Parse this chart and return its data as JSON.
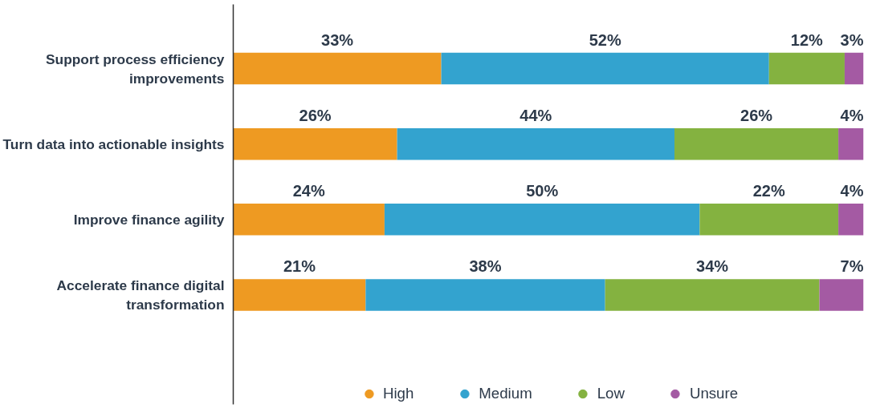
{
  "chart_data": {
    "type": "bar",
    "orientation": "horizontal",
    "stacked": true,
    "categories": [
      "Support process efficiency improvements",
      "Turn data into actionable insights",
      "Improve finance agility",
      "Accelerate finance digital transformation"
    ],
    "series": [
      {
        "name": "High",
        "color": "#ee9a22",
        "values": [
          33,
          26,
          24,
          21
        ],
        "value_labels": [
          "33%",
          "26%",
          "24%",
          "21%"
        ]
      },
      {
        "name": "Medium",
        "color": "#33a3cf",
        "values": [
          52,
          44,
          50,
          38
        ],
        "value_labels": [
          "52%",
          "44%",
          "50%",
          "38%"
        ]
      },
      {
        "name": "Low",
        "color": "#84b240",
        "values": [
          12,
          26,
          22,
          34
        ],
        "value_labels": [
          "12%",
          "26%",
          "22%",
          "34%"
        ]
      },
      {
        "name": "Unsure",
        "color": "#a45aa3",
        "values": [
          3,
          4,
          4,
          7
        ],
        "value_labels": [
          "3%",
          "4%",
          "4%",
          "7%"
        ]
      }
    ],
    "xlim": [
      0,
      100
    ],
    "tick_labels": "y",
    "grid": false,
    "legend": "bottom",
    "marker": "circle"
  }
}
